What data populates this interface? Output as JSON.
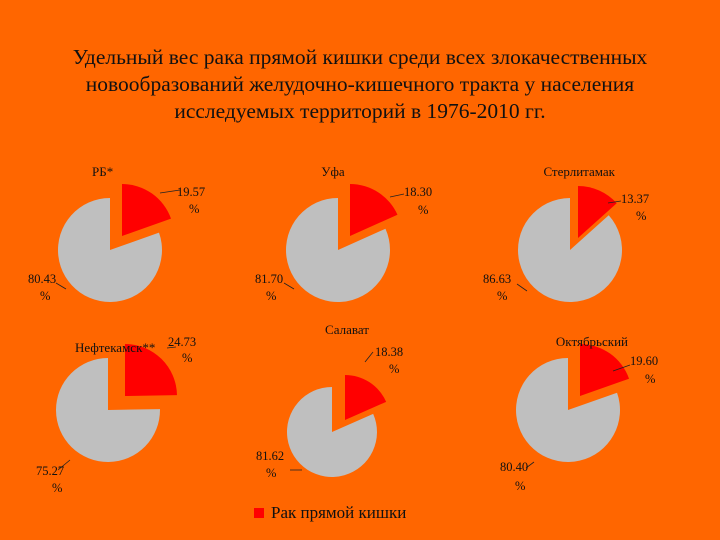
{
  "title_lines": [
    "Удельный вес рака прямой кишки среди всех злокачественных",
    "новообразований желудочно-кишечного тракта у населения",
    "исследуемых территорий в 1976-2010 гг."
  ],
  "colors": {
    "background": "#ff6600",
    "highlight": "#ff0000",
    "rest": "#bfbfbf"
  },
  "legend": {
    "label": "Рак прямой кишки"
  },
  "chart_data": [
    {
      "type": "pie",
      "title": "РБ*",
      "slices": [
        {
          "name": "Рак прямой кишки",
          "value": 19.57,
          "label": "19.57 %",
          "exploded": true
        },
        {
          "value": 80.43,
          "label": "80.43 %"
        }
      ]
    },
    {
      "type": "pie",
      "title": "Уфа",
      "slices": [
        {
          "name": "Рак прямой кишки",
          "value": 18.3,
          "label": "18.30 %",
          "exploded": true
        },
        {
          "value": 81.7,
          "label": "81.70 %"
        }
      ]
    },
    {
      "type": "pie",
      "title": "Стерлитамак",
      "slices": [
        {
          "name": "Рак прямой кишки",
          "value": 13.37,
          "label": "13.37 %",
          "exploded": true
        },
        {
          "value": 86.63,
          "label": "86.63 %"
        }
      ]
    },
    {
      "type": "pie",
      "title": "Нефтекамск**",
      "slices": [
        {
          "name": "Рак прямой кишки",
          "value": 24.73,
          "label": "24.73 %",
          "exploded": true
        },
        {
          "value": 75.27,
          "label": "75.27 %"
        }
      ]
    },
    {
      "type": "pie",
      "title": "Салават",
      "slices": [
        {
          "name": "Рак прямой кишки",
          "value": 18.38,
          "label": "18.38 %",
          "exploded": true
        },
        {
          "value": 81.62,
          "label": "81.62 %"
        }
      ]
    },
    {
      "type": "pie",
      "title": "Октябрьский",
      "slices": [
        {
          "name": "Рак прямой кишки",
          "value": 19.6,
          "label": "19.60 %",
          "exploded": true
        },
        {
          "value": 80.4,
          "label": "80.40 %"
        }
      ]
    }
  ]
}
